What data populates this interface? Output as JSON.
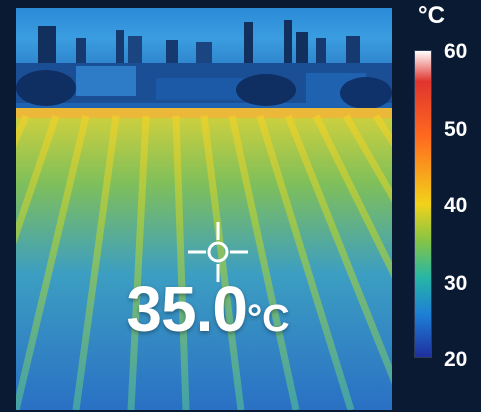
{
  "readout": {
    "value": "35.0",
    "unit": "°C"
  },
  "scale": {
    "unit": "°C",
    "ticks": [
      "60",
      "50",
      "40",
      "30",
      "20"
    ],
    "min": 20,
    "max": 60
  },
  "icons": {
    "crosshair": "crosshair-icon"
  },
  "colors": {
    "background": "#0a1a33",
    "text": "#ffffff",
    "hot": "#e0342e",
    "warm": "#f2d21b",
    "cool": "#1e7fd6"
  }
}
